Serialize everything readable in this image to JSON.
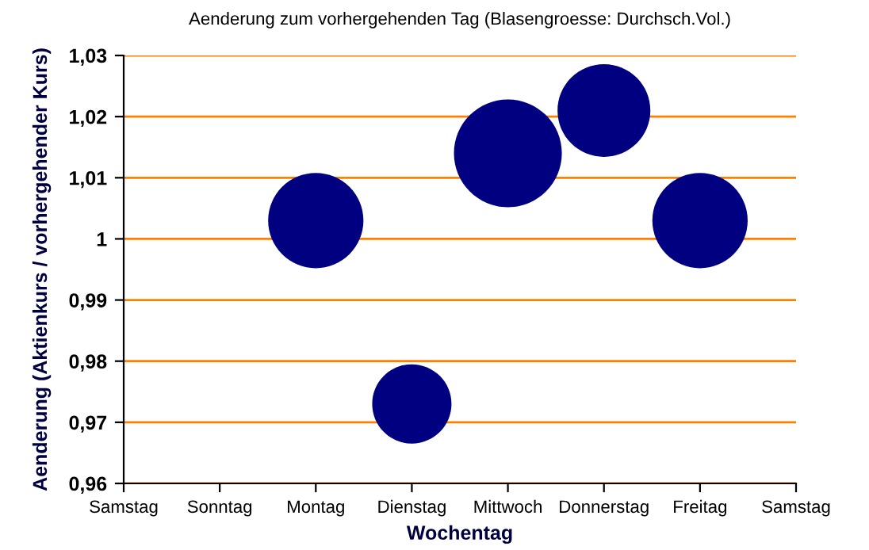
{
  "chart_data": {
    "type": "bubble",
    "title": "Aenderung zum vorhergehenden Tag (Blasengroesse: Durchsch.Vol.)",
    "xlabel": "Wochentag",
    "ylabel": "Aenderung (Aktienkurs / vorhergehender Kurs)",
    "categories": [
      "Samstag",
      "Sonntag",
      "Montag",
      "Dienstag",
      "Mittwoch",
      "Donnerstag",
      "Freitag",
      "Samstag"
    ],
    "values": [
      null,
      null,
      1.003,
      0.973,
      1.014,
      1.021,
      1.003,
      null
    ],
    "sizes": [
      null,
      null,
      0.78,
      0.54,
      1,
      0.74,
      0.78,
      null
    ],
    "color": "#000080",
    "ylim": [
      0.96,
      1.03
    ],
    "yticks": [
      {
        "value": 0.96,
        "label": "0,96"
      },
      {
        "value": 0.97,
        "label": "0,97"
      },
      {
        "value": 0.98,
        "label": "0,98"
      },
      {
        "value": 0.99,
        "label": "0,99"
      },
      1,
      {
        "value": 1.01,
        "label": "1,01"
      },
      {
        "value": 1.02,
        "label": "1,02"
      },
      {
        "value": 1.03,
        "label": "1,03"
      }
    ],
    "grid": "y",
    "legend": false
  }
}
